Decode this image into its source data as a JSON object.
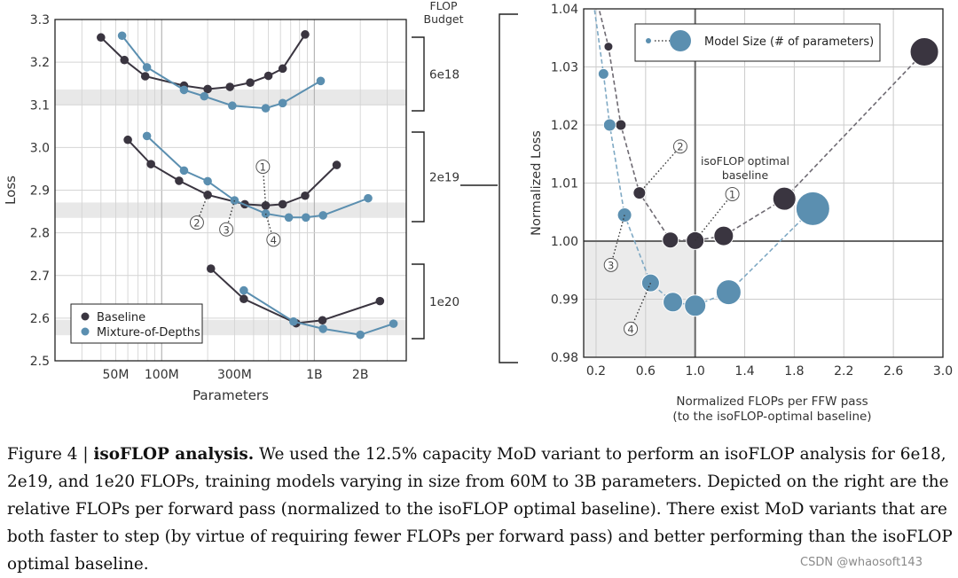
{
  "chart_data": [
    {
      "type": "line",
      "xlabel": "Parameters",
      "ylabel": "Loss",
      "xscale": "log",
      "xticks": [
        {
          "v": 50,
          "l": "50M"
        },
        {
          "v": 100,
          "l": "100M"
        },
        {
          "v": 300,
          "l": "300M"
        },
        {
          "v": 1000,
          "l": "1B"
        },
        {
          "v": 2000,
          "l": "2B"
        }
      ],
      "xlim": [
        20,
        4000
      ],
      "ylim": [
        2.5,
        3.3
      ],
      "yticks": [
        "2.5",
        "2.6",
        "2.7",
        "2.8",
        "2.9",
        "3.0",
        "3.1",
        "3.2",
        "3.3"
      ],
      "legend": {
        "position": "bottom-left",
        "entries": [
          {
            "name": "Baseline",
            "color": "#3a3540"
          },
          {
            "name": "Mixture-of-Depths",
            "color": "#5b8fb0"
          }
        ]
      },
      "budget_title": "FLOP\nBudget",
      "bands": [
        3.118,
        2.853,
        2.578
      ],
      "budgets": [
        {
          "label": "6e18",
          "baseline": [
            [
              40,
              3.258
            ],
            [
              57,
              3.205
            ],
            [
              78,
              3.167
            ],
            [
              140,
              3.145
            ],
            [
              200,
              3.137
            ],
            [
              280,
              3.142
            ],
            [
              380,
              3.152
            ],
            [
              500,
              3.168
            ],
            [
              620,
              3.185
            ],
            [
              870,
              3.265
            ]
          ],
          "mod": [
            [
              55,
              3.262
            ],
            [
              80,
              3.188
            ],
            [
              140,
              3.135
            ],
            [
              190,
              3.12
            ],
            [
              290,
              3.098
            ],
            [
              480,
              3.092
            ],
            [
              620,
              3.104
            ],
            [
              1100,
              3.156
            ]
          ]
        },
        {
          "label": "2e19",
          "baseline": [
            [
              60,
              3.018
            ],
            [
              85,
              2.961
            ],
            [
              130,
              2.922
            ],
            [
              200,
              2.889
            ],
            [
              350,
              2.867
            ],
            [
              480,
              2.864
            ],
            [
              620,
              2.867
            ],
            [
              870,
              2.887
            ],
            [
              1400,
              2.959
            ]
          ],
          "mod": [
            [
              80,
              3.027
            ],
            [
              140,
              2.946
            ],
            [
              200,
              2.921
            ],
            [
              300,
              2.876
            ],
            [
              480,
              2.845
            ],
            [
              680,
              2.836
            ],
            [
              880,
              2.836
            ],
            [
              1140,
              2.841
            ],
            [
              2250,
              2.881
            ]
          ],
          "annotations": [
            {
              "label": "1",
              "x": 480,
              "y": 2.864,
              "lx": 460,
              "ly": 2.955
            },
            {
              "label": "2",
              "x": 200,
              "y": 2.889,
              "lx": 170,
              "ly": 2.824
            },
            {
              "label": "3",
              "x": 300,
              "y": 2.876,
              "lx": 265,
              "ly": 2.808
            },
            {
              "label": "4",
              "x": 480,
              "y": 2.845,
              "lx": 540,
              "ly": 2.784
            }
          ]
        },
        {
          "label": "1e20",
          "baseline": [
            [
              210,
              2.716
            ],
            [
              345,
              2.645
            ],
            [
              760,
              2.588
            ],
            [
              1130,
              2.595
            ],
            [
              2690,
              2.64
            ]
          ],
          "mod": [
            [
              345,
              2.665
            ],
            [
              730,
              2.592
            ],
            [
              1140,
              2.575
            ],
            [
              2000,
              2.561
            ],
            [
              3300,
              2.587
            ]
          ]
        }
      ]
    },
    {
      "type": "scatter",
      "xlabel": "Normalized FLOPs per FFW pass",
      "xlabel2": "(to the isoFLOP-optimal baseline)",
      "ylabel": "Normalized Loss",
      "xlim": [
        0.1,
        3.0
      ],
      "ylim": [
        0.98,
        1.04
      ],
      "xticks": [
        "0.2",
        "0.6",
        "1.0",
        "1.4",
        "1.8",
        "2.2",
        "2.6",
        "3.0"
      ],
      "yticks": [
        "0.98",
        "0.99",
        "1.00",
        "1.01",
        "1.02",
        "1.03",
        "1.04"
      ],
      "legend": {
        "position": "top-right",
        "label": "Model Size (# of parameters)"
      },
      "optimal_label": "isoFLOP optimal\nbaseline",
      "baseline": [
        {
          "x": 0.2,
          "y": 1.042,
          "s": 4
        },
        {
          "x": 0.3,
          "y": 1.0335,
          "s": 5
        },
        {
          "x": 0.4,
          "y": 1.02,
          "s": 6
        },
        {
          "x": 0.55,
          "y": 1.0083,
          "s": 7
        },
        {
          "x": 0.8,
          "y": 1.0002,
          "s": 9
        },
        {
          "x": 1.0,
          "y": 1.0001,
          "s": 10
        },
        {
          "x": 1.23,
          "y": 1.0009,
          "s": 11
        },
        {
          "x": 1.72,
          "y": 1.0073,
          "s": 13
        },
        {
          "x": 2.85,
          "y": 1.0326,
          "s": 16
        }
      ],
      "mod": [
        {
          "x": 0.18,
          "y": 1.041,
          "s": 4
        },
        {
          "x": 0.26,
          "y": 1.0288,
          "s": 6
        },
        {
          "x": 0.31,
          "y": 1.02,
          "s": 7
        },
        {
          "x": 0.43,
          "y": 1.0045,
          "s": 8
        },
        {
          "x": 0.64,
          "y": 0.9928,
          "s": 10
        },
        {
          "x": 0.82,
          "y": 0.9895,
          "s": 11
        },
        {
          "x": 1.0,
          "y": 0.9889,
          "s": 12
        },
        {
          "x": 1.27,
          "y": 0.9912,
          "s": 14
        },
        {
          "x": 1.95,
          "y": 1.0056,
          "s": 19
        }
      ],
      "annotations": [
        {
          "label": "1",
          "x": 1.0,
          "y": 1.0001,
          "lx": 1.3,
          "ly": 1.0081
        },
        {
          "label": "2",
          "x": 0.55,
          "y": 1.0083,
          "lx": 0.88,
          "ly": 1.0163
        },
        {
          "label": "3",
          "x": 0.43,
          "y": 1.0045,
          "lx": 0.32,
          "ly": 0.9959
        },
        {
          "label": "4",
          "x": 0.64,
          "y": 0.9928,
          "lx": 0.48,
          "ly": 0.9849
        }
      ]
    }
  ],
  "caption": {
    "prefix": "Figure 4 | ",
    "bold": "isoFLOP analysis.",
    "text": " We used the 12.5% capacity MoD variant to perform an isoFLOP analysis for 6e18, 2e19, and 1e20 FLOPs, training models varying in size from 60M to 3B parameters. Depicted on the right are the relative FLOPs per forward pass (normalized to the isoFLOP optimal baseline). There exist MoD variants that are both faster to step (by virtue of requiring fewer FLOPs per forward pass) and better performing than the isoFLOP optimal baseline."
  },
  "watermark": "CSDN @whaosoft143",
  "colors": {
    "baseline": "#3a3540",
    "mod": "#5b8fb0",
    "grid": "#cccccc",
    "band": "#e8e8e8"
  }
}
